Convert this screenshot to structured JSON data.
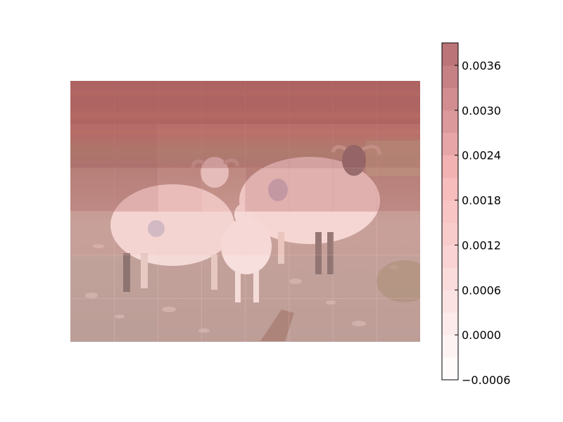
{
  "chart_data": {
    "type": "heatmap",
    "title": "",
    "xlabel": "",
    "ylabel": "",
    "description_of_background": "sheep",
    "heatmap_grid": {
      "rows": 6,
      "cols": 8,
      "values": [
        [
          0.0038,
          0.0038,
          0.0038,
          0.0038,
          0.0038,
          0.0038,
          0.0038,
          0.0038
        ],
        [
          0.0036,
          0.0036,
          0.0034,
          0.0034,
          0.0034,
          0.0034,
          0.0034,
          0.0034
        ],
        [
          0.003,
          0.003,
          0.0026,
          0.0024,
          0.003,
          0.003,
          0.003,
          0.003
        ],
        [
          0.0016,
          0.0016,
          0.0016,
          0.0016,
          0.0016,
          0.0016,
          0.0016,
          0.0016
        ],
        [
          0.001,
          0.001,
          0.0012,
          0.0012,
          0.0012,
          0.0012,
          0.0012,
          0.0012
        ],
        [
          0.001,
          0.001,
          0.0012,
          0.0012,
          0.0012,
          0.0012,
          0.0012,
          0.0012
        ]
      ]
    },
    "colorbar": {
      "min": -0.0006,
      "max": 0.0039,
      "levels": [
        -0.0006,
        -0.0003,
        0.0,
        0.0003,
        0.0006,
        0.0009,
        0.0012,
        0.0015,
        0.0018,
        0.0021,
        0.0024,
        0.0027,
        0.003,
        0.0033,
        0.0036,
        0.0039
      ],
      "ticks": [
        -0.0006,
        0.0,
        0.0006,
        0.0012,
        0.0018,
        0.0024,
        0.003,
        0.0036
      ],
      "tick_labels": [
        "−0.0006",
        "0.0000",
        "0.0006",
        "0.0012",
        "0.0018",
        "0.0024",
        "0.0030",
        "0.0036"
      ],
      "color_low": "#ffffff",
      "color_mid": "#f7b8b8",
      "color_high": "#b56e72"
    }
  }
}
